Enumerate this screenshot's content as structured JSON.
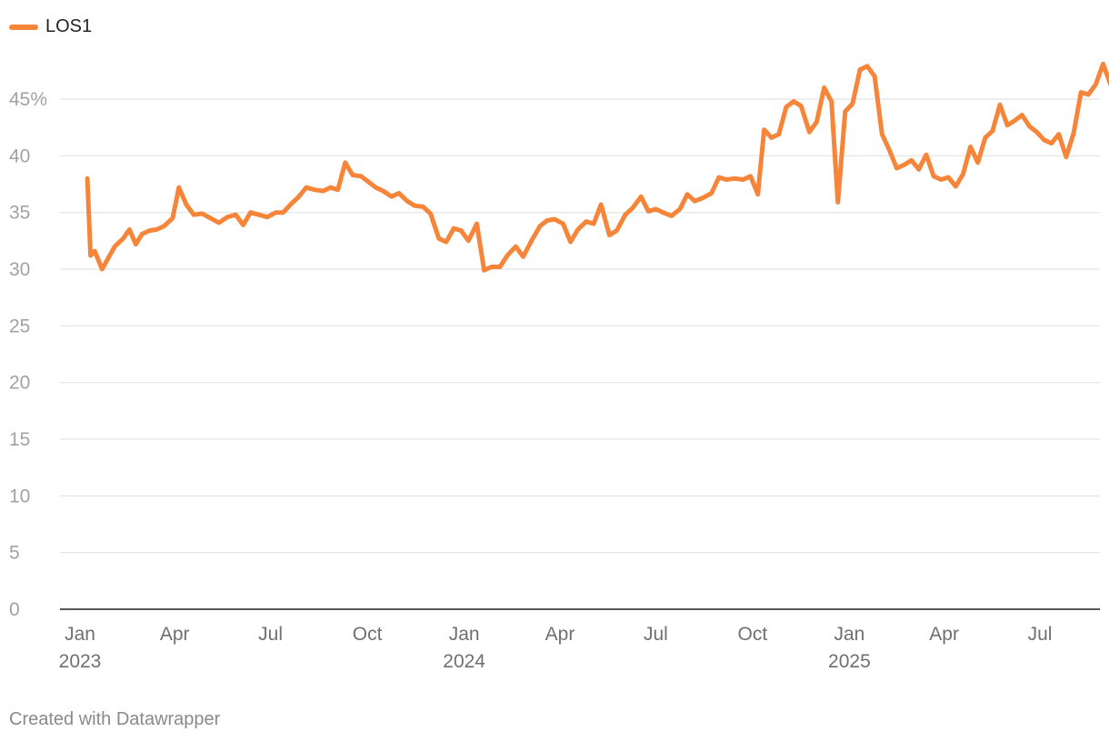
{
  "legend": {
    "label": "LOS1",
    "color": "#f68439"
  },
  "footer": {
    "credit": "Created with Datawrapper"
  },
  "chart_data": {
    "type": "line",
    "title": "",
    "xlabel": "",
    "ylabel": "",
    "ylim": [
      0,
      48
    ],
    "y_ticks": [
      {
        "value": 0,
        "label": "0"
      },
      {
        "value": 5,
        "label": "5"
      },
      {
        "value": 10,
        "label": "10"
      },
      {
        "value": 15,
        "label": "15"
      },
      {
        "value": 20,
        "label": "20"
      },
      {
        "value": 25,
        "label": "25"
      },
      {
        "value": 30,
        "label": "30"
      },
      {
        "value": 35,
        "label": "35"
      },
      {
        "value": 40,
        "label": "40"
      },
      {
        "value": 45,
        "label": "45%"
      }
    ],
    "x_ticks": [
      {
        "date": "2023-01-01",
        "line1": "Jan",
        "line2": "2023"
      },
      {
        "date": "2023-04-01",
        "line1": "Apr",
        "line2": ""
      },
      {
        "date": "2023-07-01",
        "line1": "Jul",
        "line2": ""
      },
      {
        "date": "2023-10-01",
        "line1": "Oct",
        "line2": ""
      },
      {
        "date": "2024-01-01",
        "line1": "Jan",
        "line2": "2024"
      },
      {
        "date": "2024-04-01",
        "line1": "Apr",
        "line2": ""
      },
      {
        "date": "2024-07-01",
        "line1": "Jul",
        "line2": ""
      },
      {
        "date": "2024-10-01",
        "line1": "Oct",
        "line2": ""
      },
      {
        "date": "2025-01-01",
        "line1": "Jan",
        "line2": "2025"
      },
      {
        "date": "2025-04-01",
        "line1": "Apr",
        "line2": ""
      },
      {
        "date": "2025-07-01",
        "line1": "Jul",
        "line2": ""
      }
    ],
    "series": [
      {
        "name": "LOS1",
        "color": "#f68439",
        "points": [
          [
            "2023-01-08",
            38.0
          ],
          [
            "2023-01-11",
            31.2
          ],
          [
            "2023-01-15",
            31.6
          ],
          [
            "2023-01-22",
            30.0
          ],
          [
            "2023-02-03",
            32.0
          ],
          [
            "2023-02-11",
            32.7
          ],
          [
            "2023-02-17",
            33.5
          ],
          [
            "2023-02-23",
            32.2
          ],
          [
            "2023-03-01",
            33.1
          ],
          [
            "2023-03-08",
            33.4
          ],
          [
            "2023-03-15",
            33.5
          ],
          [
            "2023-03-22",
            33.8
          ],
          [
            "2023-03-30",
            34.5
          ],
          [
            "2023-04-05",
            37.2
          ],
          [
            "2023-04-12",
            35.7
          ],
          [
            "2023-04-19",
            34.8
          ],
          [
            "2023-04-27",
            34.9
          ],
          [
            "2023-05-05",
            34.5
          ],
          [
            "2023-05-13",
            34.1
          ],
          [
            "2023-05-21",
            34.6
          ],
          [
            "2023-05-29",
            34.8
          ],
          [
            "2023-06-05",
            33.9
          ],
          [
            "2023-06-12",
            35.0
          ],
          [
            "2023-06-20",
            34.8
          ],
          [
            "2023-06-28",
            34.6
          ],
          [
            "2023-07-06",
            35.0
          ],
          [
            "2023-07-13",
            35.0
          ],
          [
            "2023-07-20",
            35.7
          ],
          [
            "2023-07-28",
            36.4
          ],
          [
            "2023-08-04",
            37.2
          ],
          [
            "2023-08-12",
            37.0
          ],
          [
            "2023-08-20",
            36.9
          ],
          [
            "2023-08-27",
            37.2
          ],
          [
            "2023-09-03",
            37.0
          ],
          [
            "2023-09-10",
            39.4
          ],
          [
            "2023-09-17",
            38.3
          ],
          [
            "2023-09-25",
            38.2
          ],
          [
            "2023-10-02",
            37.7
          ],
          [
            "2023-10-09",
            37.2
          ],
          [
            "2023-10-16",
            36.9
          ],
          [
            "2023-10-24",
            36.4
          ],
          [
            "2023-10-31",
            36.7
          ],
          [
            "2023-11-08",
            36.0
          ],
          [
            "2023-11-15",
            35.6
          ],
          [
            "2023-11-23",
            35.5
          ],
          [
            "2023-11-30",
            34.9
          ],
          [
            "2023-12-08",
            32.7
          ],
          [
            "2023-12-15",
            32.4
          ],
          [
            "2023-12-22",
            33.6
          ],
          [
            "2023-12-29",
            33.4
          ],
          [
            "2024-01-05",
            32.5
          ],
          [
            "2024-01-13",
            34.0
          ],
          [
            "2024-01-20",
            29.9
          ],
          [
            "2024-01-27",
            30.2
          ],
          [
            "2024-02-04",
            30.2
          ],
          [
            "2024-02-11",
            31.2
          ],
          [
            "2024-02-19",
            32.0
          ],
          [
            "2024-02-26",
            31.1
          ],
          [
            "2024-03-05",
            32.5
          ],
          [
            "2024-03-13",
            33.8
          ],
          [
            "2024-03-20",
            34.3
          ],
          [
            "2024-03-27",
            34.4
          ],
          [
            "2024-04-04",
            34.0
          ],
          [
            "2024-04-11",
            32.4
          ],
          [
            "2024-04-18",
            33.5
          ],
          [
            "2024-04-26",
            34.2
          ],
          [
            "2024-05-03",
            34.0
          ],
          [
            "2024-05-10",
            35.7
          ],
          [
            "2024-05-18",
            33.0
          ],
          [
            "2024-05-25",
            33.4
          ],
          [
            "2024-06-02",
            34.8
          ],
          [
            "2024-06-09",
            35.4
          ],
          [
            "2024-06-17",
            36.4
          ],
          [
            "2024-06-24",
            35.1
          ],
          [
            "2024-07-01",
            35.3
          ],
          [
            "2024-07-08",
            35.0
          ],
          [
            "2024-07-16",
            34.7
          ],
          [
            "2024-07-24",
            35.3
          ],
          [
            "2024-07-31",
            36.6
          ],
          [
            "2024-08-07",
            36.0
          ],
          [
            "2024-08-15",
            36.3
          ],
          [
            "2024-08-23",
            36.7
          ],
          [
            "2024-08-30",
            38.1
          ],
          [
            "2024-09-06",
            37.9
          ],
          [
            "2024-09-14",
            38.0
          ],
          [
            "2024-09-22",
            37.9
          ],
          [
            "2024-09-29",
            38.2
          ],
          [
            "2024-10-06",
            36.6
          ],
          [
            "2024-10-12",
            42.3
          ],
          [
            "2024-10-19",
            41.6
          ],
          [
            "2024-10-26",
            41.9
          ],
          [
            "2024-11-02",
            44.3
          ],
          [
            "2024-11-09",
            44.8
          ],
          [
            "2024-11-16",
            44.4
          ],
          [
            "2024-11-24",
            42.1
          ],
          [
            "2024-12-01",
            43.0
          ],
          [
            "2024-12-08",
            46.0
          ],
          [
            "2024-12-15",
            44.8
          ],
          [
            "2024-12-21",
            35.9
          ],
          [
            "2024-12-28",
            43.9
          ],
          [
            "2025-01-04",
            44.6
          ],
          [
            "2025-01-11",
            47.6
          ],
          [
            "2025-01-18",
            47.9
          ],
          [
            "2025-01-25",
            47.0
          ],
          [
            "2025-02-01",
            41.9
          ],
          [
            "2025-02-08",
            40.5
          ],
          [
            "2025-02-15",
            38.9
          ],
          [
            "2025-02-22",
            39.2
          ],
          [
            "2025-03-01",
            39.6
          ],
          [
            "2025-03-08",
            38.8
          ],
          [
            "2025-03-15",
            40.1
          ],
          [
            "2025-03-22",
            38.2
          ],
          [
            "2025-03-29",
            37.9
          ],
          [
            "2025-04-05",
            38.1
          ],
          [
            "2025-04-12",
            37.3
          ],
          [
            "2025-04-19",
            38.4
          ],
          [
            "2025-04-26",
            40.8
          ],
          [
            "2025-05-03",
            39.4
          ],
          [
            "2025-05-10",
            41.6
          ],
          [
            "2025-05-17",
            42.2
          ],
          [
            "2025-05-24",
            44.5
          ],
          [
            "2025-05-31",
            42.7
          ],
          [
            "2025-06-07",
            43.1
          ],
          [
            "2025-06-14",
            43.6
          ],
          [
            "2025-06-21",
            42.6
          ],
          [
            "2025-06-28",
            42.1
          ],
          [
            "2025-07-05",
            41.4
          ],
          [
            "2025-07-12",
            41.1
          ],
          [
            "2025-07-19",
            41.9
          ],
          [
            "2025-07-26",
            39.9
          ],
          [
            "2025-08-02",
            42.0
          ],
          [
            "2025-08-09",
            45.6
          ],
          [
            "2025-08-16",
            45.4
          ],
          [
            "2025-08-23",
            46.3
          ],
          [
            "2025-08-30",
            48.1
          ],
          [
            "2025-09-06",
            46.3
          ]
        ]
      }
    ],
    "grid": true,
    "legend_position": "top-left"
  }
}
